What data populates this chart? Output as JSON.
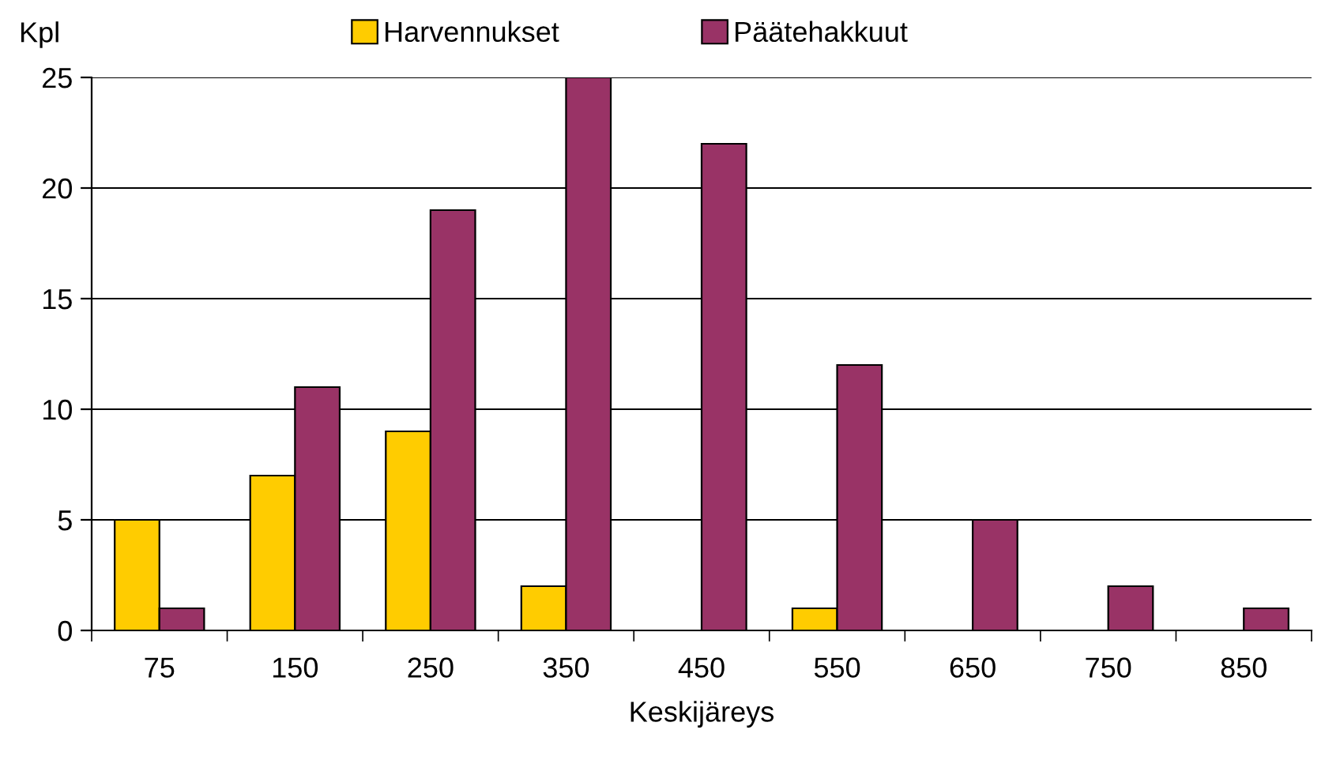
{
  "chart_data": {
    "type": "bar",
    "ylabel": "Kpl",
    "xlabel": "Keskijäreys",
    "categories": [
      "75",
      "150",
      "250",
      "350",
      "450",
      "550",
      "650",
      "750",
      "850"
    ],
    "series": [
      {
        "name": "Harvennukset",
        "color": "#ffcc00",
        "values": [
          5,
          7,
          9,
          2,
          0,
          1,
          0,
          0,
          0
        ]
      },
      {
        "name": "Päätehakkuut",
        "color": "#993366",
        "values": [
          1,
          11,
          19,
          25,
          22,
          12,
          5,
          2,
          1
        ]
      }
    ],
    "ylim": [
      0,
      25
    ],
    "yticks": [
      0,
      5,
      10,
      15,
      20,
      25
    ],
    "grid": "y",
    "legend": "top"
  }
}
